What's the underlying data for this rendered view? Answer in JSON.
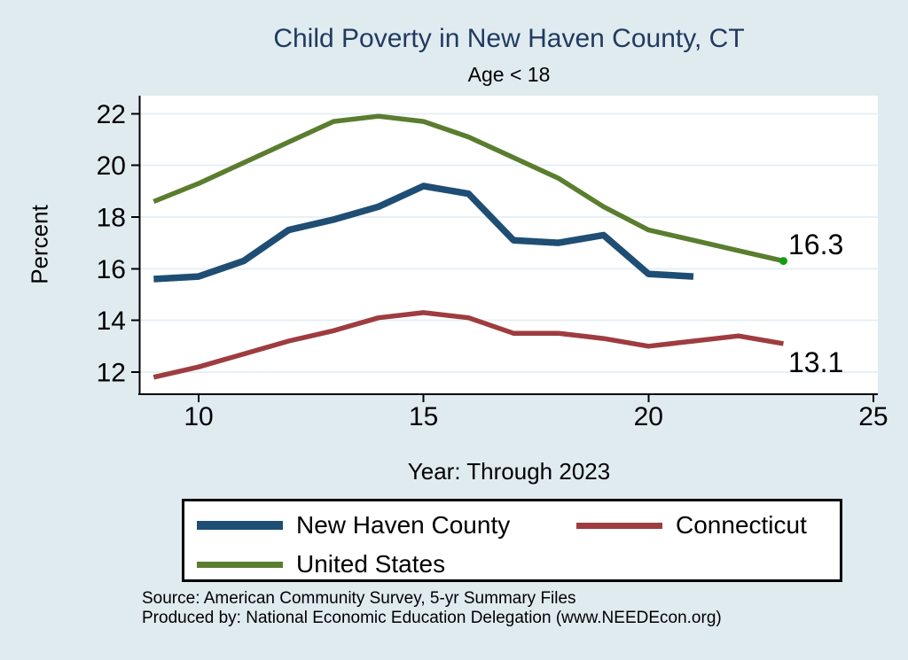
{
  "title": "Child Poverty in New Haven County, CT",
  "subtitle": "Age < 18",
  "y_axis_title": "Percent",
  "x_axis_title": "Year: Through 2023",
  "annotations": {
    "us_end": "16.3",
    "ct_end": "13.1"
  },
  "legend": {
    "items": [
      {
        "label": "New Haven County",
        "series": "New Haven County",
        "swatch_thickness": 10
      },
      {
        "label": "Connecticut",
        "series": "Connecticut",
        "swatch_thickness": 7
      },
      {
        "label": "United States",
        "series": "United States",
        "swatch_thickness": 7
      }
    ]
  },
  "source": {
    "line1": "Source: American Community Survey, 5-yr Summary Files",
    "line2": "Produced by: National Economic Education Delegation (www.NEEDEcon.org)"
  },
  "colors": {
    "background": "#e0ebf0",
    "plot_background": "#ffffff",
    "gridline": "#e7f0f7",
    "axis": "#000000",
    "title": "#213a60",
    "new_haven_county": "#1f4e74",
    "connecticut": "#9e3c40",
    "united_states": "#5a7d2f",
    "us_end_marker": "#10a010"
  },
  "chart_data": {
    "type": "line",
    "title": "Child Poverty in New Haven County, CT",
    "subtitle": "Age < 18",
    "xlabel": "Year: Through 2023",
    "ylabel": "Percent",
    "x": [
      9,
      10,
      11,
      12,
      13,
      14,
      15,
      16,
      17,
      18,
      19,
      20,
      21,
      22,
      23
    ],
    "xticks": [
      10,
      15,
      20,
      25
    ],
    "yticks": [
      12,
      14,
      16,
      18,
      20,
      22
    ],
    "xlim": [
      8.7,
      25.1
    ],
    "ylim": [
      11.1,
      22.7
    ],
    "grid": true,
    "legend_position": "bottom",
    "series": [
      {
        "name": "New Haven County",
        "color": "#1f4e74",
        "line_width": 7.5,
        "values": [
          15.6,
          15.7,
          16.3,
          17.5,
          17.9,
          18.4,
          19.2,
          18.9,
          17.1,
          17.0,
          17.3,
          15.8,
          15.7,
          null,
          null
        ]
      },
      {
        "name": "Connecticut",
        "color": "#9e3c40",
        "line_width": 5.5,
        "values": [
          11.8,
          12.2,
          12.7,
          13.2,
          13.6,
          14.1,
          14.3,
          14.1,
          13.5,
          13.5,
          13.3,
          13.0,
          13.2,
          13.4,
          13.1
        ],
        "end_label": "13.1"
      },
      {
        "name": "United States",
        "color": "#5a7d2f",
        "line_width": 5.5,
        "values": [
          18.6,
          19.3,
          20.1,
          20.9,
          21.7,
          21.9,
          21.7,
          21.1,
          20.3,
          19.5,
          18.4,
          17.5,
          17.1,
          16.7,
          16.3
        ],
        "end_label": "16.3",
        "end_marker": true
      }
    ]
  }
}
